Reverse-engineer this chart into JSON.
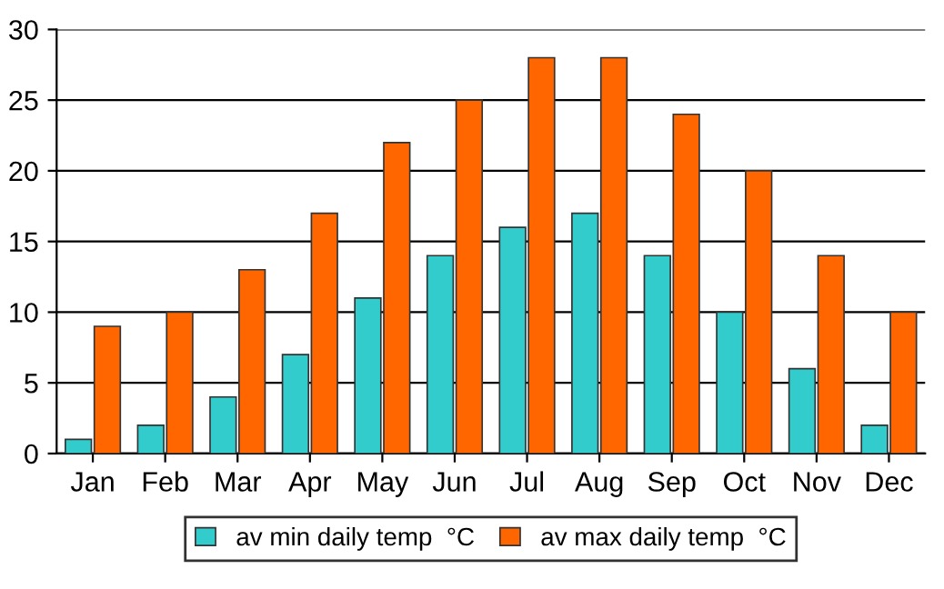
{
  "chart_data": {
    "type": "bar",
    "categories": [
      "Jan",
      "Feb",
      "Mar",
      "Apr",
      "May",
      "Jun",
      "Jul",
      "Aug",
      "Sep",
      "Oct",
      "Nov",
      "Dec"
    ],
    "series": [
      {
        "name": "av min daily temp  °C",
        "color": "#33cccc",
        "values": [
          1,
          2,
          4,
          7,
          11,
          14,
          16,
          17,
          14,
          10,
          6,
          2
        ]
      },
      {
        "name": "av max daily temp  °C",
        "color": "#ff6600",
        "values": [
          9,
          10,
          13,
          17,
          22,
          25,
          28,
          28,
          24,
          20,
          14,
          10
        ]
      }
    ],
    "ylim": [
      0,
      30
    ],
    "yticks": [
      0,
      5,
      10,
      15,
      20,
      25,
      30
    ],
    "grid": "y",
    "legend": "bottom"
  }
}
